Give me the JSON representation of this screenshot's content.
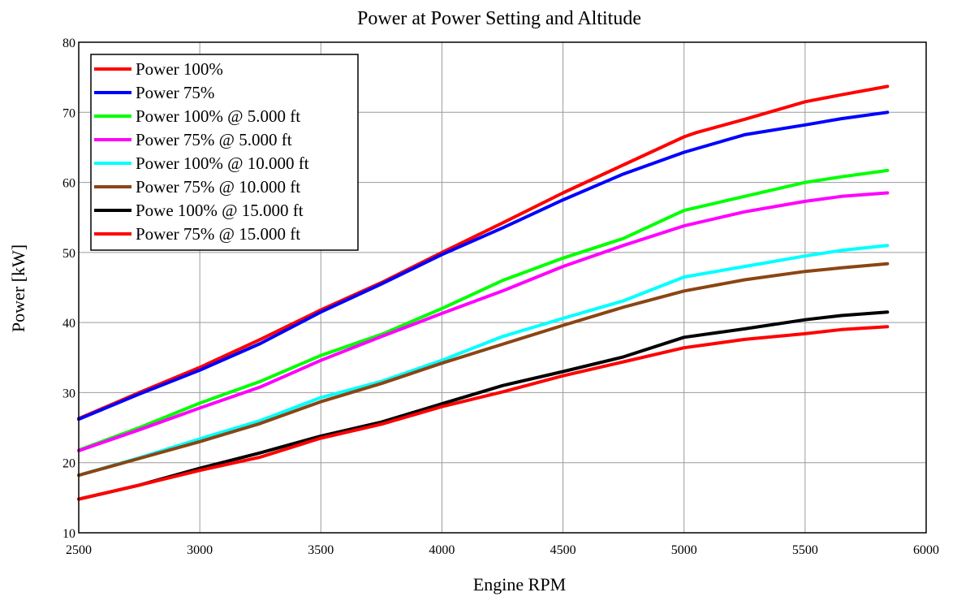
{
  "chart_data": {
    "type": "line",
    "title": "Power at Power Setting and Altitude",
    "xlabel": "Engine RPM",
    "ylabel": "Power [kW]",
    "xlim": [
      2500,
      6000
    ],
    "ylim": [
      10,
      80
    ],
    "xticks": [
      2500,
      3000,
      3500,
      4000,
      4500,
      5000,
      5500,
      6000
    ],
    "yticks": [
      10,
      20,
      30,
      40,
      50,
      60,
      70,
      80
    ],
    "grid": true,
    "legend_position": "top-left",
    "series": [
      {
        "name": "Power 100%",
        "color": "#ff0000",
        "x": [
          2500,
          2750,
          3000,
          3250,
          3500,
          3750,
          4000,
          4250,
          4500,
          4750,
          5000,
          5050,
          5250,
          5500,
          5650,
          5840
        ],
        "y": [
          26.3,
          30.0,
          33.6,
          37.6,
          41.8,
          45.7,
          50.0,
          54.2,
          58.5,
          62.5,
          66.5,
          67.1,
          69.0,
          71.5,
          72.5,
          73.7
        ]
      },
      {
        "name": "Power 75%",
        "color": "#0000ff",
        "x": [
          2500,
          2750,
          3000,
          3250,
          3500,
          3750,
          4000,
          4250,
          4500,
          4750,
          5000,
          5250,
          5500,
          5650,
          5840
        ],
        "y": [
          26.2,
          29.8,
          33.2,
          37.0,
          41.5,
          45.5,
          49.7,
          53.5,
          57.5,
          61.2,
          64.3,
          66.8,
          68.2,
          69.1,
          70.0
        ]
      },
      {
        "name": "Power 100% @ 5.000 ft",
        "color": "#00ff00",
        "x": [
          2500,
          2750,
          3000,
          3250,
          3500,
          3750,
          4000,
          4250,
          4500,
          4750,
          5000,
          5250,
          5500,
          5650,
          5840
        ],
        "y": [
          21.8,
          25.0,
          28.5,
          31.6,
          35.3,
          38.3,
          42.0,
          46.0,
          49.2,
          52.0,
          56.0,
          58.0,
          60.0,
          60.8,
          61.7
        ]
      },
      {
        "name": "Power 75% @ 5.000 ft",
        "color": "#ff00ff",
        "x": [
          2500,
          2750,
          3000,
          3250,
          3500,
          3750,
          4000,
          4250,
          4500,
          4750,
          5000,
          5250,
          5500,
          5650,
          5840
        ],
        "y": [
          21.7,
          24.7,
          27.8,
          30.8,
          34.6,
          38.0,
          41.3,
          44.5,
          48.0,
          51.0,
          53.8,
          55.8,
          57.3,
          58.0,
          58.5
        ]
      },
      {
        "name": "Power 100% @ 10.000 ft",
        "color": "#00ffff",
        "x": [
          2500,
          2750,
          3000,
          3250,
          3500,
          3750,
          4000,
          4250,
          4500,
          4750,
          5000,
          5250,
          5500,
          5650,
          5840
        ],
        "y": [
          18.2,
          20.7,
          23.4,
          26.0,
          29.3,
          31.6,
          34.6,
          38.0,
          40.6,
          43.1,
          46.5,
          48.0,
          49.5,
          50.3,
          51.0
        ]
      },
      {
        "name": "Power 75% @ 10.000 ft",
        "color": "#8b4513",
        "x": [
          2500,
          2750,
          3000,
          3250,
          3500,
          3750,
          4000,
          4250,
          4500,
          4750,
          5000,
          5250,
          5500,
          5650,
          5840
        ],
        "y": [
          18.2,
          20.6,
          23.0,
          25.6,
          28.7,
          31.3,
          34.2,
          36.9,
          39.6,
          42.2,
          44.5,
          46.1,
          47.3,
          47.8,
          48.4
        ]
      },
      {
        "name": "Powe 100% @ 15.000 ft",
        "color": "#000000",
        "x": [
          2500,
          2750,
          3000,
          3250,
          3500,
          3750,
          4000,
          4250,
          4500,
          4750,
          5000,
          5250,
          5500,
          5650,
          5840
        ],
        "y": [
          14.8,
          16.8,
          19.2,
          21.4,
          23.8,
          25.8,
          28.4,
          31.0,
          33.0,
          35.1,
          37.9,
          39.1,
          40.4,
          41.0,
          41.5
        ]
      },
      {
        "name": "Power 75% @ 15.000 ft",
        "color": "#ff0000",
        "x": [
          2500,
          2750,
          3000,
          3250,
          3500,
          3750,
          4000,
          4250,
          4500,
          4750,
          5000,
          5250,
          5500,
          5650,
          5840
        ],
        "y": [
          14.8,
          16.8,
          18.9,
          20.8,
          23.5,
          25.5,
          28.0,
          30.1,
          32.4,
          34.4,
          36.4,
          37.6,
          38.4,
          39.0,
          39.4
        ]
      }
    ]
  }
}
